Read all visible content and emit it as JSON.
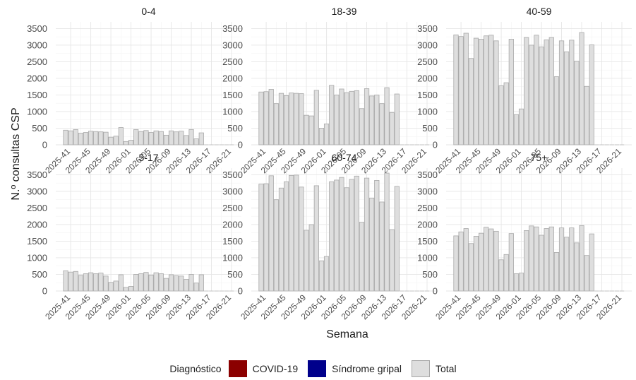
{
  "chart_data": {
    "type": "bar",
    "facet_layout": "3 columns x 2 rows",
    "xlabel": "Semana",
    "ylabel": "N.º consultas CSP",
    "ylim": [
      0,
      3700
    ],
    "yticks": [
      0,
      500,
      1000,
      1500,
      2000,
      2500,
      3000,
      3500
    ],
    "x_tick_labels": [
      "2025-41",
      "2025-45",
      "2025-49",
      "2026-01",
      "2026-05",
      "2026-09",
      "2026-13",
      "2026-17",
      "2026-21"
    ],
    "grid": true,
    "weeks": [
      "2025-40",
      "2025-41",
      "2025-42",
      "2025-43",
      "2025-44",
      "2025-45",
      "2025-46",
      "2025-47",
      "2025-48",
      "2025-49",
      "2025-50",
      "2025-51",
      "2025-52",
      "2026-01",
      "2026-02",
      "2026-03",
      "2026-04",
      "2026-05",
      "2026-06",
      "2026-07",
      "2026-08",
      "2026-09",
      "2026-10",
      "2026-11",
      "2026-12",
      "2026-13",
      "2026-14",
      "2026-15",
      "2026-16",
      "2026-17",
      "2026-18",
      "2026-19",
      "2026-20",
      "2026-21"
    ],
    "legend": {
      "title": "Diagnóstico",
      "position": "bottom",
      "items": [
        {
          "label": "COVID-19",
          "color": "#8b0000"
        },
        {
          "label": "Síndrome gripal",
          "color": "#00008b"
        },
        {
          "label": "Total",
          "color": "#dedede"
        }
      ]
    },
    "series_note_colors": {
      "total_fill": "#dedede",
      "total_border": "#a8a8a8"
    },
    "panels": [
      {
        "title": "0-4",
        "total": [
          440,
          420,
          460,
          350,
          370,
          410,
          400,
          390,
          380,
          230,
          260,
          520,
          100,
          140,
          460,
          400,
          430,
          370,
          420,
          400,
          290,
          420,
          390,
          410,
          280,
          460,
          180,
          360,
          null,
          null,
          null,
          null,
          null,
          null
        ]
      },
      {
        "title": "18-39",
        "total": [
          1590,
          1600,
          1670,
          1240,
          1550,
          1480,
          1560,
          1550,
          1540,
          890,
          870,
          1640,
          500,
          630,
          1790,
          1500,
          1680,
          1570,
          1610,
          1630,
          1090,
          1690,
          1470,
          1500,
          1240,
          1720,
          970,
          1530,
          null,
          null,
          null,
          null,
          null,
          null
        ]
      },
      {
        "title": "40-59",
        "total": [
          3310,
          3260,
          3360,
          2600,
          3210,
          3180,
          3280,
          3300,
          3130,
          1780,
          1870,
          3180,
          910,
          1080,
          3230,
          3000,
          3300,
          2950,
          3160,
          3230,
          2050,
          3130,
          2800,
          3150,
          2520,
          3380,
          1760,
          3010,
          null,
          null,
          null,
          null,
          null,
          null
        ]
      },
      {
        "title": "5-17",
        "total": [
          610,
          570,
          590,
          470,
          520,
          550,
          520,
          540,
          450,
          260,
          300,
          490,
          110,
          140,
          500,
          520,
          560,
          480,
          550,
          520,
          380,
          490,
          460,
          450,
          350,
          500,
          240,
          490,
          null,
          null,
          null,
          null,
          null,
          null
        ]
      },
      {
        "title": "60-74",
        "total": [
          3220,
          3230,
          3470,
          2750,
          3100,
          3290,
          3480,
          3490,
          3130,
          1830,
          2000,
          3170,
          910,
          1040,
          3290,
          3340,
          3420,
          3110,
          3360,
          3460,
          2070,
          3400,
          2800,
          3330,
          2680,
          3550,
          1850,
          3150,
          null,
          null,
          null,
          null,
          null,
          null
        ]
      },
      {
        "title": "75+",
        "total": [
          1660,
          1780,
          1880,
          1430,
          1650,
          1740,
          1920,
          1870,
          1800,
          940,
          1100,
          1730,
          520,
          540,
          1820,
          1960,
          1930,
          1680,
          1880,
          1930,
          1160,
          1900,
          1620,
          1900,
          1450,
          1970,
          1070,
          1720,
          null,
          null,
          null,
          null,
          null,
          null
        ]
      }
    ]
  }
}
